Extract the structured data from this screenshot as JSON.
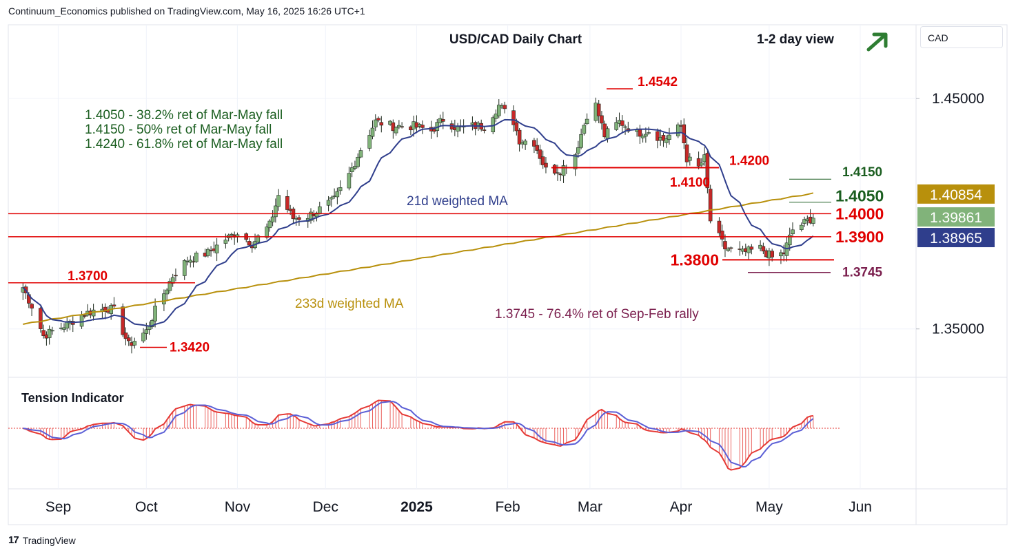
{
  "header": "Continuum_Economics published on TradingView.com, May 16, 2025 16:26 UTC+1",
  "footer": "TradingView",
  "currency": "CAD",
  "colors": {
    "up": "#81b37a",
    "down": "#c62828",
    "wma21": "#2f3e8c",
    "wma233": "#b8900c",
    "red": "#e00000",
    "green": "#1b5e20",
    "maroon": "#7b1f4e",
    "tension": "#e53935",
    "tension_ma": "#5b5fd6"
  },
  "chart_data": {
    "type": "candlestick",
    "title": "USD/CAD Daily Chart",
    "view": "1-2 day view",
    "view_arrow": "arrow-up-right-icon",
    "y_ticks": [
      "1.45000",
      "1.35000"
    ],
    "x_ticks": [
      "Sep",
      "Oct",
      "Nov",
      "Dec",
      "2025",
      "Feb",
      "Mar",
      "Apr",
      "May",
      "Jun"
    ],
    "ylim": [
      1.329,
      1.482
    ],
    "price_labels": [
      {
        "text": "1.40854",
        "value": 1.40854,
        "bg": "#b8900c"
      },
      {
        "text": "1.39861",
        "value": 1.39861,
        "bg": "#81b37a"
      },
      {
        "text": "1.38965",
        "value": 1.38965,
        "bg": "#2f3e8c"
      }
    ],
    "retracement_notes": [
      "1.4050 - 38.2% ret of Mar-May fall",
      "1.4150 - 50% ret of Mar-May fall",
      "1.4240 - 61.8% ret of Mar-May fall"
    ],
    "ma_labels": [
      "21d weighted MA",
      "233d weighted MA"
    ],
    "fib_note": "1.3745 - 76.4% ret of Sep-Feb rally",
    "levels": [
      {
        "text": "1.4542",
        "value": 1.4542
      },
      {
        "text": "1.4200",
        "value": 1.42
      },
      {
        "text": "1.4150",
        "value": 1.415
      },
      {
        "text": "1.4100",
        "value": 1.41
      },
      {
        "text": "1.4050",
        "value": 1.405
      },
      {
        "text": "1.4000",
        "value": 1.4
      },
      {
        "text": "1.3900",
        "value": 1.39
      },
      {
        "text": "1.3800",
        "value": 1.38
      },
      {
        "text": "1.3745",
        "value": 1.3745
      },
      {
        "text": "1.3700",
        "value": 1.37
      },
      {
        "text": "1.3420",
        "value": 1.342
      }
    ],
    "anchors": [
      [
        "2024-08-20",
        1.368
      ],
      [
        "2024-08-23",
        1.36
      ],
      [
        "2024-08-27",
        1.347
      ],
      [
        "2024-08-30",
        1.349
      ],
      [
        "2024-09-04",
        1.352
      ],
      [
        "2024-09-09",
        1.356
      ],
      [
        "2024-09-13",
        1.358
      ],
      [
        "2024-09-18",
        1.359
      ],
      [
        "2024-09-20",
        1.358
      ],
      [
        "2024-09-25",
        1.343
      ],
      [
        "2024-10-01",
        1.349
      ],
      [
        "2024-10-04",
        1.358
      ],
      [
        "2024-10-10",
        1.373
      ],
      [
        "2024-10-15",
        1.38
      ],
      [
        "2024-10-22",
        1.383
      ],
      [
        "2024-10-28",
        1.389
      ],
      [
        "2024-11-01",
        1.392
      ],
      [
        "2024-11-06",
        1.387
      ],
      [
        "2024-11-12",
        1.395
      ],
      [
        "2024-11-15",
        1.408
      ],
      [
        "2024-11-20",
        1.398
      ],
      [
        "2024-11-25",
        1.399
      ],
      [
        "2024-11-29",
        1.402
      ],
      [
        "2024-12-04",
        1.406
      ],
      [
        "2024-12-09",
        1.417
      ],
      [
        "2024-12-13",
        1.428
      ],
      [
        "2024-12-18",
        1.44
      ],
      [
        "2024-12-24",
        1.438
      ],
      [
        "2024-12-31",
        1.438
      ],
      [
        "2025-01-06",
        1.436
      ],
      [
        "2025-01-10",
        1.441
      ],
      [
        "2025-01-15",
        1.437
      ],
      [
        "2025-01-20",
        1.438
      ],
      [
        "2025-01-24",
        1.438
      ],
      [
        "2025-01-29",
        1.447
      ],
      [
        "2025-02-03",
        1.44
      ],
      [
        "2025-02-05",
        1.432
      ],
      [
        "2025-02-10",
        1.431
      ],
      [
        "2025-02-14",
        1.419
      ],
      [
        "2025-02-19",
        1.419
      ],
      [
        "2025-02-24",
        1.426
      ],
      [
        "2025-02-28",
        1.443
      ],
      [
        "2025-03-03",
        1.447
      ],
      [
        "2025-03-06",
        1.434
      ],
      [
        "2025-03-11",
        1.44
      ],
      [
        "2025-03-17",
        1.435
      ],
      [
        "2025-03-21",
        1.436
      ],
      [
        "2025-03-26",
        1.432
      ],
      [
        "2025-04-01",
        1.438
      ],
      [
        "2025-04-03",
        1.424
      ],
      [
        "2025-04-07",
        1.42
      ],
      [
        "2025-04-09",
        1.424
      ],
      [
        "2025-04-11",
        1.397
      ],
      [
        "2025-04-16",
        1.385
      ],
      [
        "2025-04-22",
        1.383
      ],
      [
        "2025-04-28",
        1.385
      ],
      [
        "2025-05-02",
        1.381
      ],
      [
        "2025-05-06",
        1.383
      ],
      [
        "2025-05-09",
        1.393
      ],
      [
        "2025-05-13",
        1.396
      ],
      [
        "2025-05-16",
        1.3986
      ]
    ]
  }
}
